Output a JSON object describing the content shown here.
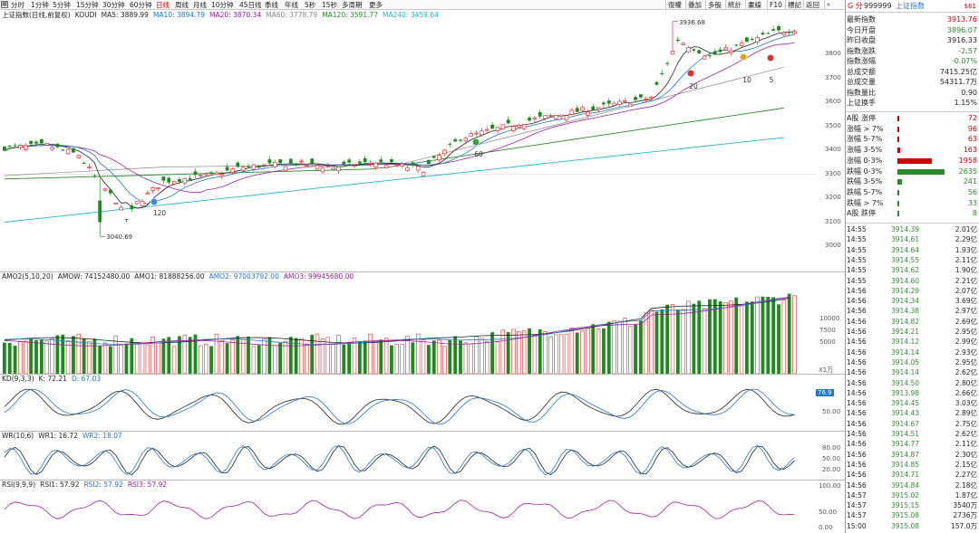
{
  "toolbar": {
    "timeframes": [
      "分时",
      "1分钟",
      "5分钟",
      "15分钟",
      "30分钟",
      "60分钟",
      "日线",
      "周线",
      "月线",
      "10分钟",
      "45日线",
      "季线",
      "年线",
      "5秒",
      "15秒",
      "多周期",
      "更多"
    ],
    "active": "日线",
    "right_buttons": [
      "復權",
      "疊加",
      "多股",
      "統計",
      "畫線",
      "F10",
      "標記",
      "返回"
    ],
    "search_icon": "magnifier-icon",
    "menu_icon": "grid-icon"
  },
  "main_chart": {
    "title": "上证指数(日线,前复权)",
    "indicator": "KOUDI",
    "ma_labels": [
      {
        "text": "MA5: 3889.99",
        "color": "#222222"
      },
      {
        "text": "MA10: 3894.79",
        "color": "#1f78c8"
      },
      {
        "text": "MA20: 3870.34",
        "color": "#a020a0"
      },
      {
        "text": "MA60: 3778.79",
        "color": "#888888"
      },
      {
        "text": "MA120: 3591.77",
        "color": "#2a8a2a"
      },
      {
        "text": "MA240: 3459.64",
        "color": "#20b8c8"
      }
    ],
    "y_ticks": [
      3800,
      3700,
      3600,
      3500,
      3400,
      3300,
      3200,
      3100,
      3000
    ],
    "high_label": "3936.68",
    "low_label": "3040.69",
    "markers": [
      "120",
      "60",
      "20",
      "10",
      "5"
    ]
  },
  "volume": {
    "legend": [
      {
        "text": "AMO2(5,10,20)",
        "color": "#222222"
      },
      {
        "text": "AMOW: 74152480.00",
        "color": "#222222"
      },
      {
        "text": "AMO1: 81888256.00",
        "color": "#222222"
      },
      {
        "text": "AMO2: 97003792.00",
        "color": "#1f78c8"
      },
      {
        "text": "AMO3: 99945680.00",
        "color": "#a020a0"
      }
    ],
    "y_ticks": [
      "10000",
      "7500",
      "5000"
    ],
    "unit": "X1万"
  },
  "kd": {
    "legend": [
      {
        "text": "KD(9,3,3)",
        "color": "#222222"
      },
      {
        "text": "K: 72.21",
        "color": "#222222"
      },
      {
        "text": "D: 67.03",
        "color": "#1f78c8"
      }
    ],
    "y_ticks": [
      "50.00"
    ],
    "badge": "76.9"
  },
  "wr": {
    "legend": [
      {
        "text": "WR(10,6)",
        "color": "#222222"
      },
      {
        "text": "WR1: 16.72",
        "color": "#222222"
      },
      {
        "text": "WR2: 18.07",
        "color": "#1f78c8"
      }
    ],
    "y_ticks": [
      "80.00",
      "50.00",
      "20.00"
    ]
  },
  "rsi": {
    "legend": [
      {
        "text": "RSI(9,9,9)",
        "color": "#222222"
      },
      {
        "text": "RSI1: 57.92",
        "color": "#222222"
      },
      {
        "text": "RSI2: 57.92",
        "color": "#1f78c8"
      },
      {
        "text": "RSI3: 57.92",
        "color": "#a020a0"
      }
    ],
    "y_ticks": [
      "100.00",
      "50.00",
      "0.00"
    ]
  },
  "quote": {
    "prefix": "G 分",
    "code": "999999",
    "name": "上证指数",
    "sig": "$61",
    "rows": [
      {
        "label": "最新指数",
        "value": "3913.76",
        "color": "#d00000"
      },
      {
        "label": "今日开盘",
        "value": "3896.07",
        "color": "#2a8a2a"
      },
      {
        "label": "昨日收盘",
        "value": "3916.33",
        "color": "#222222"
      },
      {
        "label": "指数涨跌",
        "value": "-2.57",
        "color": "#2a8a2a"
      },
      {
        "label": "指数涨幅",
        "value": "-0.07%",
        "color": "#2a8a2a"
      },
      {
        "label": "总成交额",
        "value": "7415.25亿",
        "color": "#222222"
      },
      {
        "label": "总成交量",
        "value": "54311.7万",
        "color": "#222222"
      },
      {
        "label": "指数量比",
        "value": "0.90",
        "color": "#222222"
      },
      {
        "label": "上证换手",
        "value": "1.15%",
        "color": "#222222"
      }
    ],
    "breadth": [
      {
        "label": "A股 涨停",
        "value": "72",
        "color": "#d00000",
        "frac": 0.004
      },
      {
        "label": "涨幅 > 7%",
        "value": "96",
        "color": "#d00000",
        "frac": 0.006
      },
      {
        "label": "涨幅 5-7%",
        "value": "63",
        "color": "#d00000",
        "frac": 0.004
      },
      {
        "label": "涨幅 3-5%",
        "value": "163",
        "color": "#d00000",
        "frac": 0.06
      },
      {
        "label": "涨幅 0-3%",
        "value": "1958",
        "color": "#d00000",
        "frac": 0.74
      },
      {
        "label": "跌幅 0-3%",
        "value": "2635",
        "color": "#2a8a2a",
        "frac": 1.0
      },
      {
        "label": "跌幅 3-5%",
        "value": "241",
        "color": "#2a8a2a",
        "frac": 0.09
      },
      {
        "label": "跌幅 5-7%",
        "value": "56",
        "color": "#2a8a2a",
        "frac": 0.004
      },
      {
        "label": "跌幅 > 7%",
        "value": "33",
        "color": "#2a8a2a",
        "frac": 0.004
      },
      {
        "label": "A股 跌停",
        "value": "8",
        "color": "#2a8a2a",
        "frac": 0.004
      }
    ],
    "ticks": [
      {
        "time": "14:55",
        "price": "3914.39",
        "vol": "2.01亿"
      },
      {
        "time": "14:55",
        "price": "3914.61",
        "vol": "2.29亿"
      },
      {
        "time": "14:55",
        "price": "3914.64",
        "vol": "1.93亿"
      },
      {
        "time": "14:55",
        "price": "3914.55",
        "vol": "2.11亿"
      },
      {
        "time": "14:55",
        "price": "3914.62",
        "vol": "1.90亿"
      },
      {
        "time": "14:55",
        "price": "3914.60",
        "vol": "2.21亿"
      },
      {
        "time": "14:56",
        "price": "3914.29",
        "vol": "2.07亿"
      },
      {
        "time": "14:56",
        "price": "3914.34",
        "vol": "3.69亿"
      },
      {
        "time": "14:56",
        "price": "3914.38",
        "vol": "2.97亿"
      },
      {
        "time": "14:56",
        "price": "3914.82",
        "vol": "2.69亿"
      },
      {
        "time": "14:56",
        "price": "3914.21",
        "vol": "2.95亿"
      },
      {
        "time": "14:56",
        "price": "3914.12",
        "vol": "2.99亿"
      },
      {
        "time": "14:56",
        "price": "3914.14",
        "vol": "2.93亿"
      },
      {
        "time": "14:56",
        "price": "3914.05",
        "vol": "2.95亿"
      },
      {
        "time": "14:56",
        "price": "3914.14",
        "vol": "2.62亿"
      },
      {
        "time": "14:56",
        "price": "3914.50",
        "vol": "2.80亿"
      },
      {
        "time": "14:56",
        "price": "3913.98",
        "vol": "2.66亿"
      },
      {
        "time": "14:56",
        "price": "3914.45",
        "vol": "3.03亿"
      },
      {
        "time": "14:56",
        "price": "3914.43",
        "vol": "2.89亿"
      },
      {
        "time": "14:56",
        "price": "3914.67",
        "vol": "2.75亿"
      },
      {
        "time": "14:56",
        "price": "3914.51",
        "vol": "2.62亿"
      },
      {
        "time": "14:56",
        "price": "3914.77",
        "vol": "2.11亿"
      },
      {
        "time": "14:56",
        "price": "3914.87",
        "vol": "2.30亿"
      },
      {
        "time": "14:56",
        "price": "3914.85",
        "vol": "2.15亿"
      },
      {
        "time": "14:56",
        "price": "3914.71",
        "vol": "2.27亿"
      },
      {
        "time": "14:56",
        "price": "3914.84",
        "vol": "2.18亿"
      },
      {
        "time": "14:57",
        "price": "3915.02",
        "vol": "1.87亿"
      },
      {
        "time": "14:57",
        "price": "3915.15",
        "vol": "3540万"
      },
      {
        "time": "14:57",
        "price": "3915.08",
        "vol": "2736万"
      },
      {
        "time": "15:00",
        "price": "3915.08",
        "vol": "157.0万"
      }
    ]
  }
}
